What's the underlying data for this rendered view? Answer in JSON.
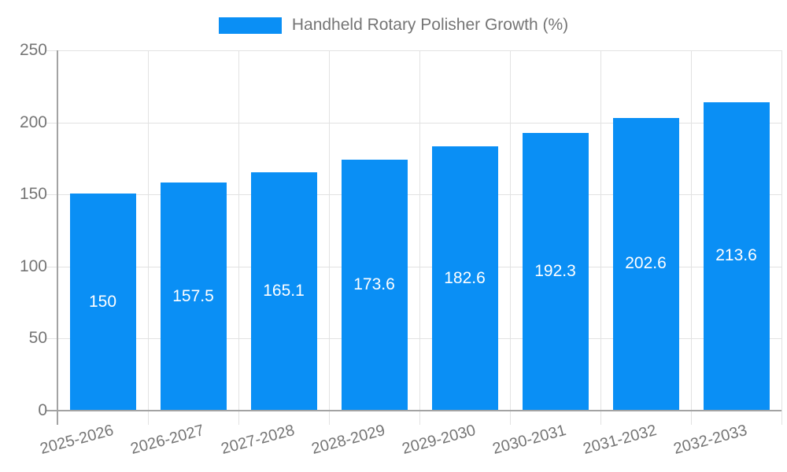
{
  "chart_data": {
    "type": "bar",
    "legend": "Handheld Rotary Polisher Growth (%)",
    "categories": [
      "2025-2026",
      "2026-2027",
      "2027-2028",
      "2028-2029",
      "2029-2030",
      "2030-2031",
      "2031-2032",
      "2032-2033"
    ],
    "values": [
      150,
      157.5,
      165.1,
      173.6,
      182.6,
      192.3,
      202.6,
      213.6
    ],
    "value_labels": [
      "150",
      "157.5",
      "165.1",
      "173.6",
      "182.6",
      "192.3",
      "202.6",
      "213.6"
    ],
    "ylim": [
      0,
      250
    ],
    "yticks": [
      0,
      50,
      100,
      150,
      200,
      250
    ],
    "grid": true,
    "legend_position": "top-center",
    "xlabel": "",
    "ylabel": "",
    "colors": {
      "bar": "#0a8ff5",
      "axis": "#a3a3a3",
      "grid": "#e2e2e2",
      "tick_text": "#757575",
      "value_text": "#ffffff"
    }
  }
}
